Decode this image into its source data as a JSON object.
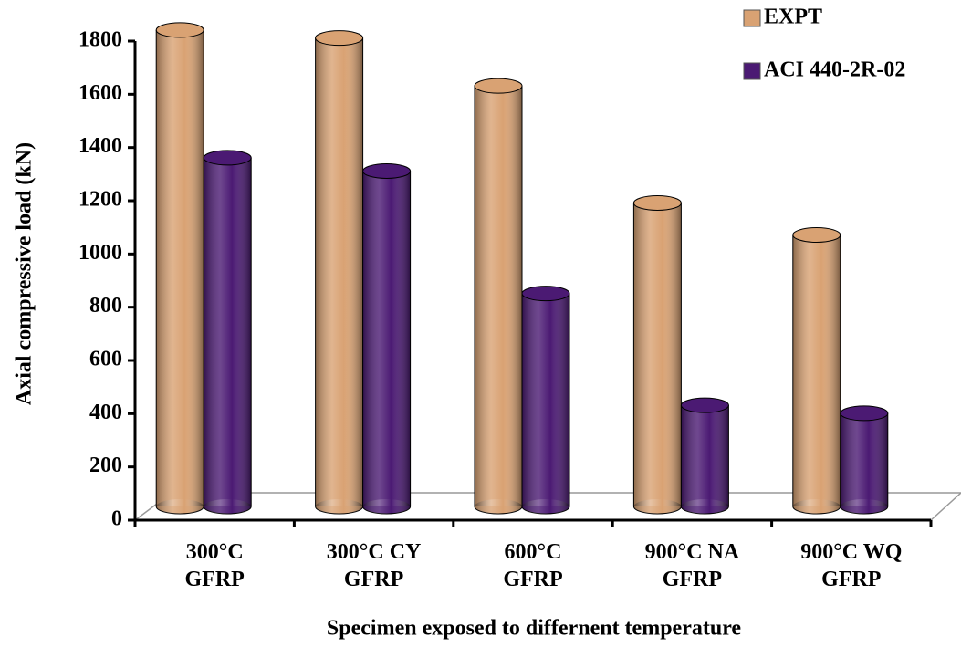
{
  "chart_data": {
    "type": "bar",
    "y_label": "Axial compressive load (kN)",
    "x_label": "Specimen exposed to differnent temperature",
    "categories": [
      "300°C GFRP",
      "300°C CY GFRP",
      "600°C GFRP",
      "900°C NA GFRP",
      "900°C WQ GFRP"
    ],
    "series": [
      {
        "name": "EXPT",
        "color": "#d9a273",
        "values": [
          1790,
          1760,
          1580,
          1140,
          1020
        ]
      },
      {
        "name": "ACI 440-2R-02",
        "color": "#4b1a73",
        "values": [
          1310,
          1260,
          800,
          380,
          350
        ]
      }
    ],
    "ylim": [
      0,
      1800
    ],
    "yticks": [
      0,
      200,
      400,
      600,
      800,
      1000,
      1200,
      1400,
      1600,
      1800
    ],
    "legend": "top-right"
  }
}
